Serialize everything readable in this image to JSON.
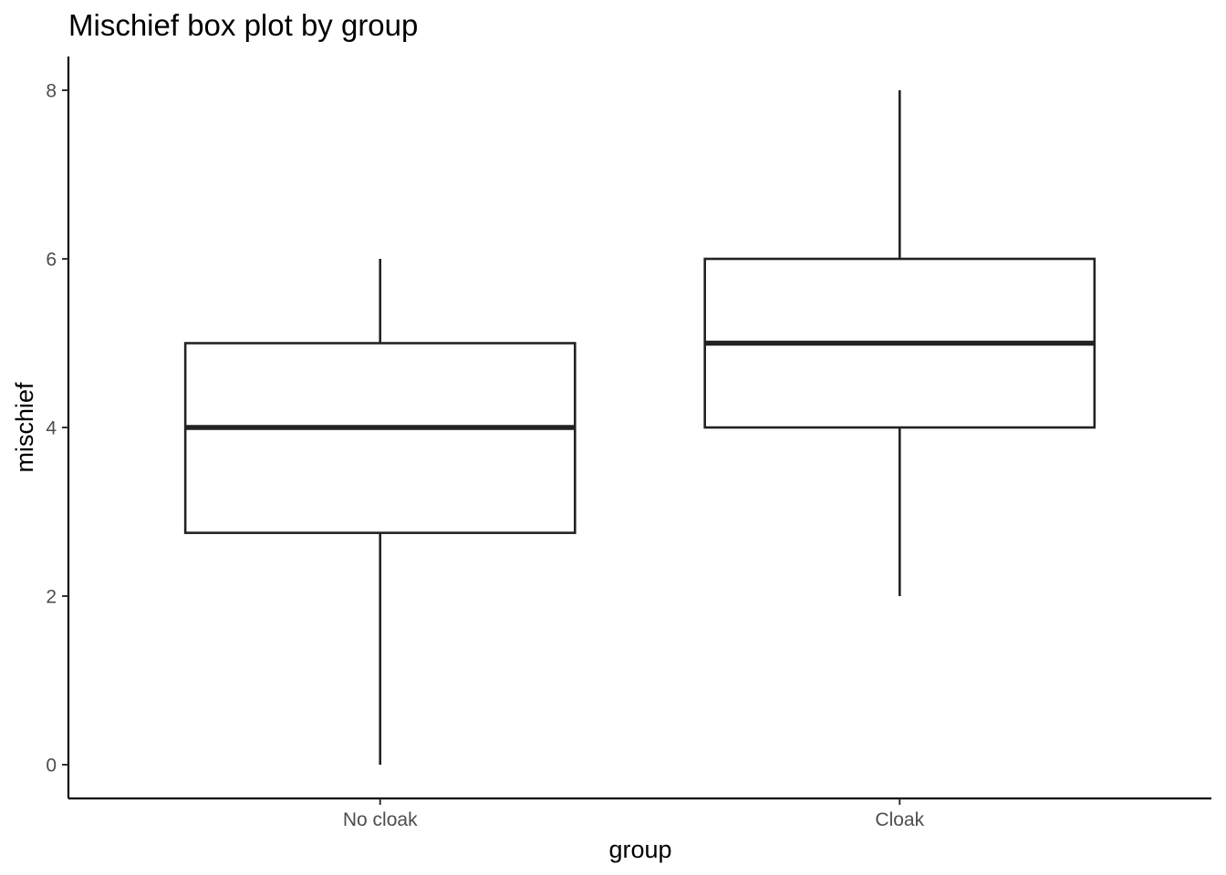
{
  "chart_data": {
    "type": "boxplot",
    "title": "Mischief box plot by group",
    "xlabel": "group",
    "ylabel": "mischief",
    "categories": [
      "No cloak",
      "Cloak"
    ],
    "boxes": [
      {
        "category": "No cloak",
        "min": 0,
        "q1": 2.75,
        "median": 4,
        "q3": 5,
        "max": 6
      },
      {
        "category": "Cloak",
        "min": 2,
        "q1": 4,
        "median": 5,
        "q3": 6,
        "max": 8
      }
    ],
    "yticks": [
      0,
      2,
      4,
      6,
      8
    ],
    "ylim": [
      -0.4,
      8.4
    ],
    "grid": false,
    "legend": "none"
  }
}
